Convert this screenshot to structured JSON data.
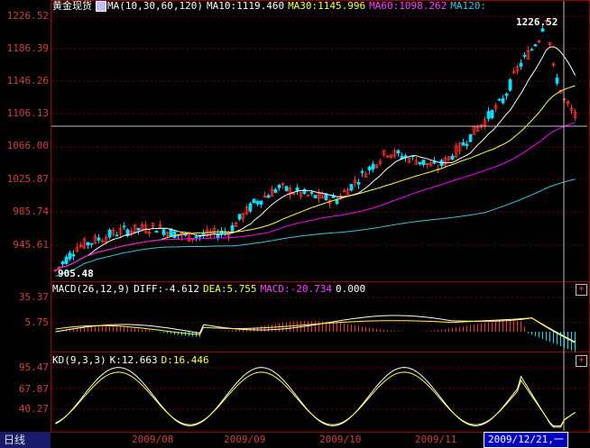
{
  "main_panel": {
    "instrument": "黄金现货",
    "indicator_label": "MA(10,30,60,120)",
    "ma10": "MA10:1119.460",
    "ma30": "MA30:1145.996",
    "ma60": "MA60:1098.262",
    "ma120": "MA120:",
    "y_ticks": [
      "1226.52",
      "1186.39",
      "1146.26",
      "1106.13",
      "1066.00",
      "1025.87",
      "985.74",
      "945.61"
    ],
    "high_label": "1226.52",
    "low_label": "905.48"
  },
  "macd_panel": {
    "label": "MACD(26,12,9)",
    "diff": "DIFF:-4.612",
    "dea": "DEA:5.755",
    "macd": "MACD:-20.734",
    "extra": "0.000",
    "y_ticks": [
      "35.37",
      "5.75"
    ]
  },
  "kd_panel": {
    "label": "KD(9,3,3)",
    "k": "K:12.663",
    "d": "D:16.446",
    "y_ticks": [
      "95.47",
      "67.87",
      "40.27"
    ]
  },
  "bottom": {
    "period_label": "日线",
    "x_ticks": [
      "2009/08",
      "2009/09",
      "2009/10",
      "2009/11"
    ],
    "cursor_date": "2009/12/21,一",
    "plus_icon": "+"
  },
  "colors": {
    "frame": "#a00000",
    "axis_text": "#d04040",
    "up": "#ff3030",
    "down": "#00e0ff",
    "ma10": "#ffffff",
    "ma30": "#ffff40",
    "ma60": "#ff00ff",
    "ma120": "#30c8e0"
  }
}
